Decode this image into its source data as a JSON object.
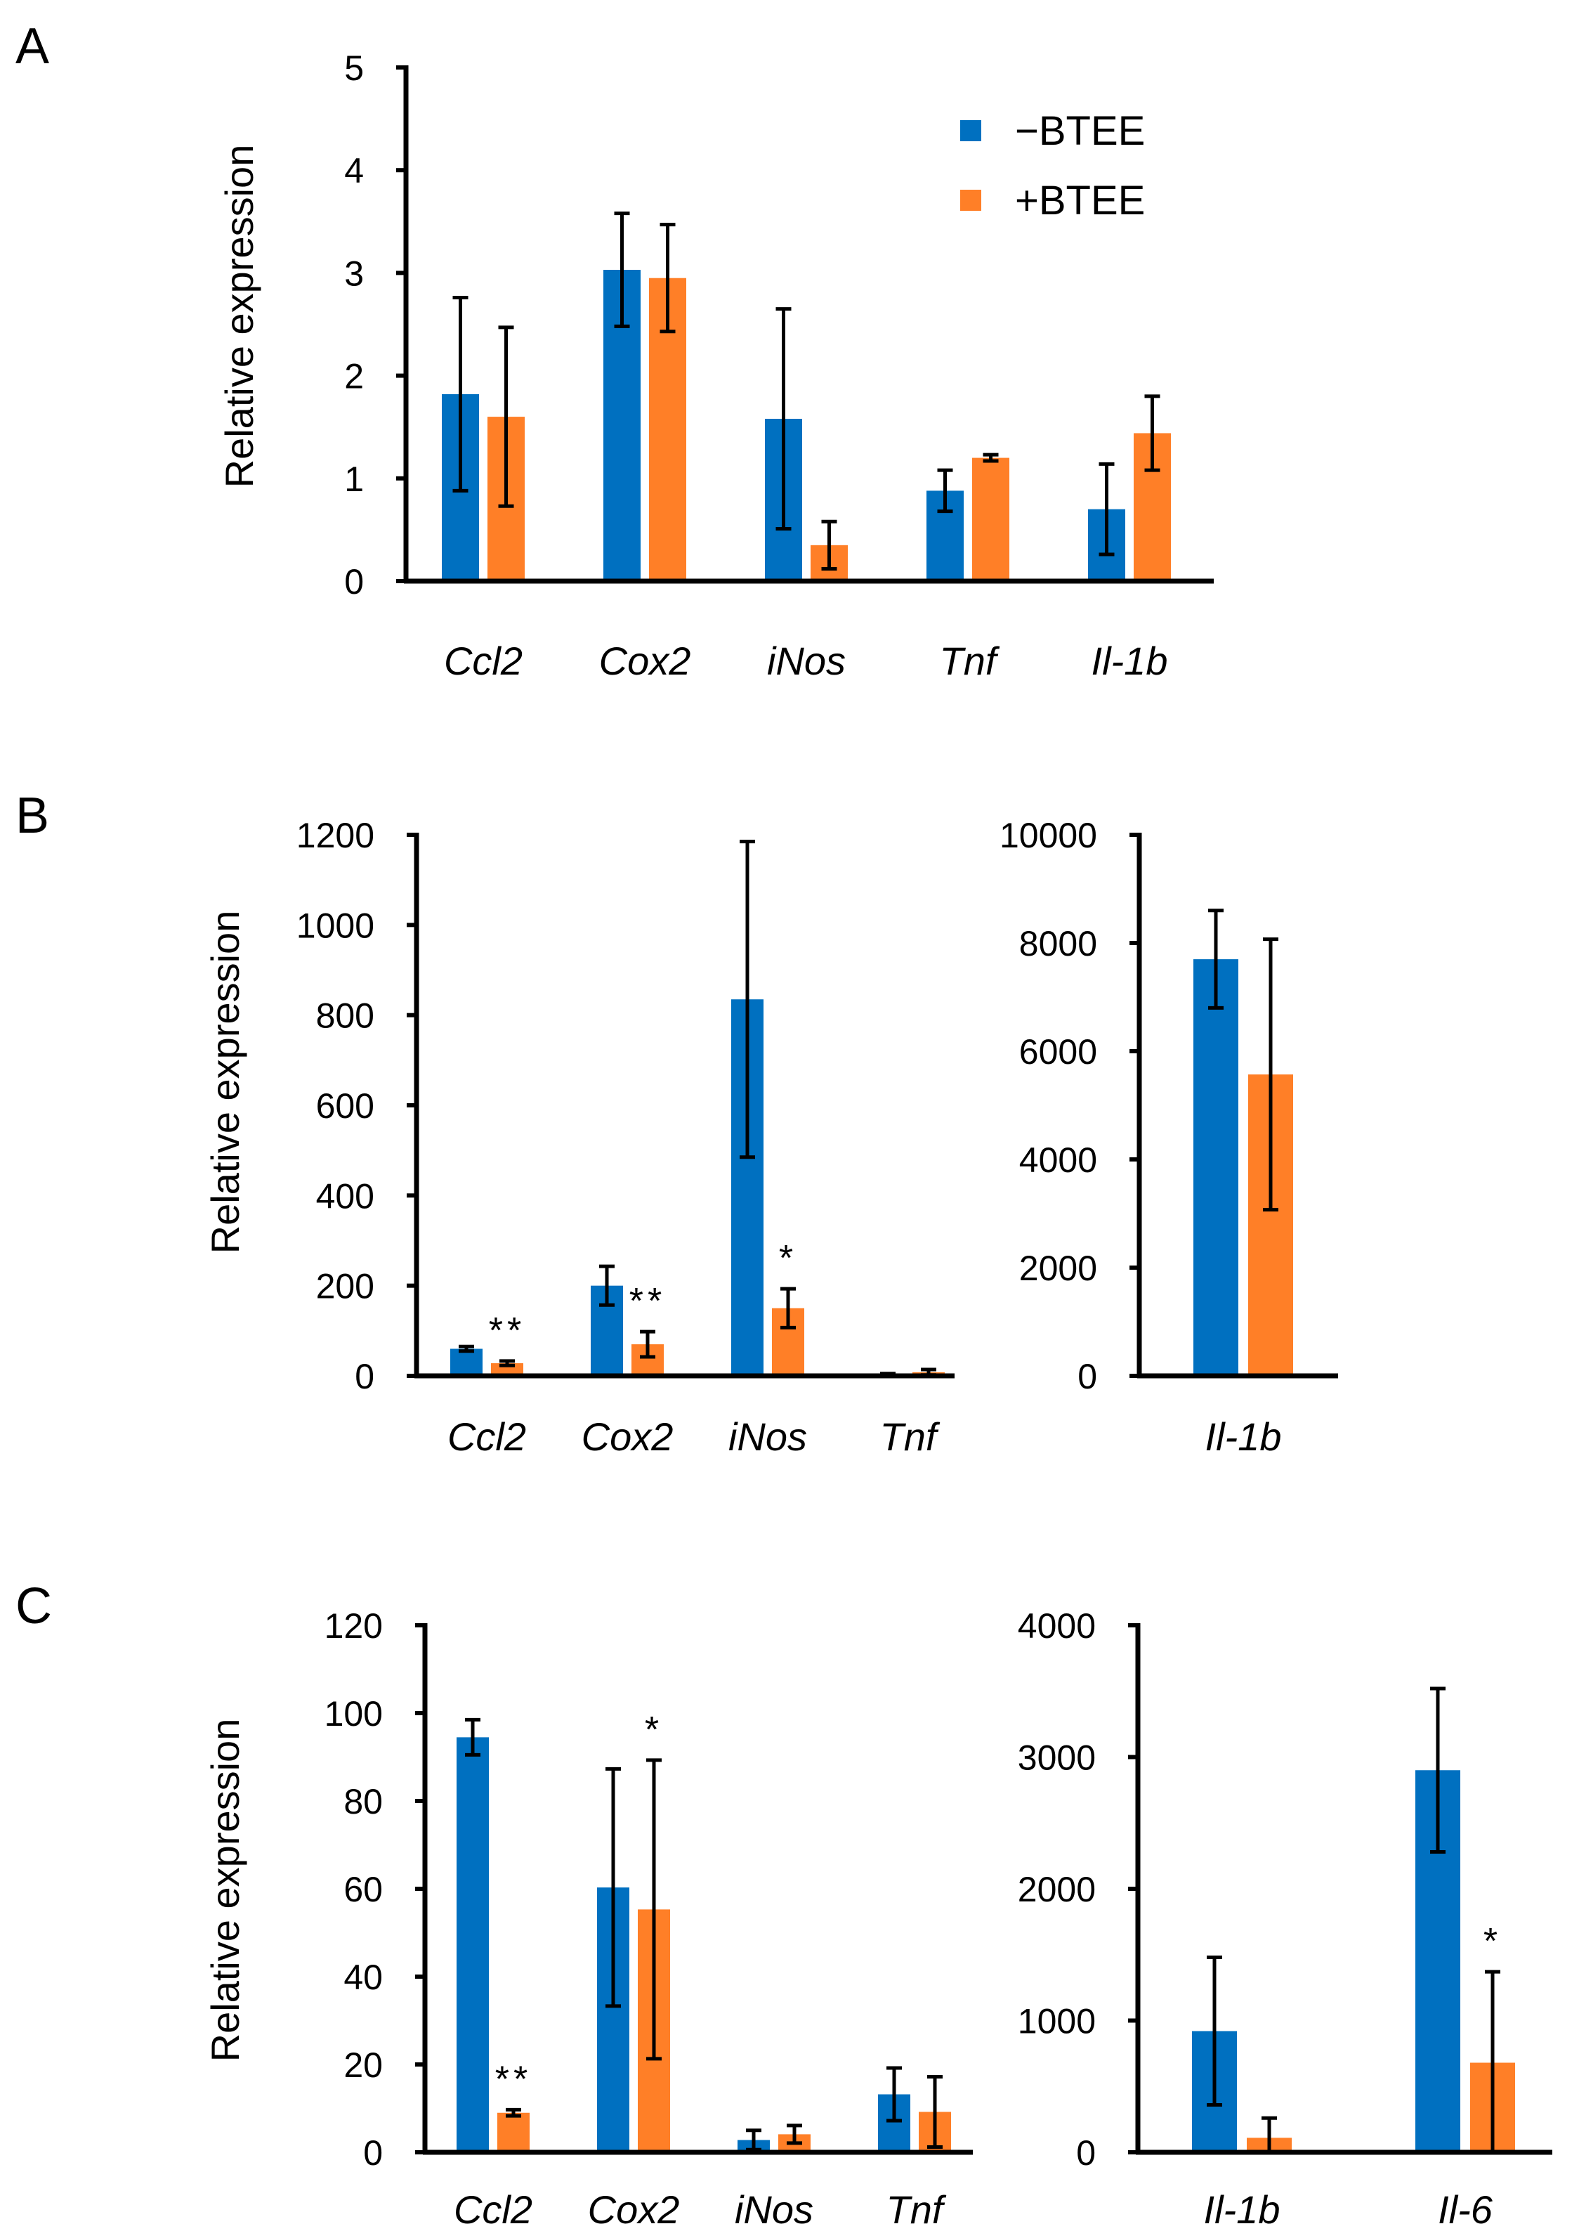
{
  "colors": {
    "minus_btee": "#0070C0",
    "plus_btee": "#FF7F27"
  },
  "legend": [
    {
      "name": "−BTEE",
      "color": "#0070C0"
    },
    {
      "name": "+BTEE",
      "color": "#FF7F27"
    }
  ],
  "chart_data": [
    {
      "panel": "A",
      "type": "bar",
      "ylabel": "Relative expression",
      "ylim": [
        0,
        5
      ],
      "yticks": [
        0,
        1,
        2,
        3,
        4,
        5
      ],
      "categories": [
        "Ccl2",
        "Cox2",
        "iNos",
        "Tnf",
        "Il-1b"
      ],
      "series": [
        {
          "name": "−BTEE",
          "values": [
            1.82,
            3.03,
            1.58,
            0.88,
            0.7
          ],
          "errors": [
            0.94,
            0.55,
            1.07,
            0.2,
            0.44
          ]
        },
        {
          "name": "+BTEE",
          "values": [
            1.6,
            2.95,
            0.35,
            1.2,
            1.44
          ],
          "errors": [
            0.87,
            0.52,
            0.23,
            0.03,
            0.36
          ]
        }
      ],
      "annotations": []
    },
    {
      "panel": "B",
      "type": "bar",
      "ylabel": "Relative expression",
      "ylim": [
        0,
        1200
      ],
      "yticks": [
        0,
        200,
        400,
        600,
        800,
        1000,
        1200
      ],
      "categories": [
        "Ccl2",
        "Cox2",
        "iNos",
        "Tnf"
      ],
      "series": [
        {
          "name": "−BTEE",
          "values": [
            60,
            200,
            835,
            3
          ],
          "errors": [
            5,
            43,
            350,
            2
          ]
        },
        {
          "name": "+BTEE",
          "values": [
            28,
            70,
            150,
            8
          ],
          "errors": [
            5,
            28,
            43,
            6
          ]
        }
      ],
      "annotations": [
        {
          "category": "Ccl2",
          "series": "+BTEE",
          "text": "**"
        },
        {
          "category": "Cox2",
          "series": "+BTEE",
          "text": "**"
        },
        {
          "category": "iNos",
          "series": "+BTEE",
          "text": "*"
        }
      ]
    },
    {
      "panel": "B",
      "type": "bar",
      "ylabel": "",
      "ylim": [
        0,
        10000
      ],
      "yticks": [
        0,
        2000,
        4000,
        6000,
        8000,
        10000
      ],
      "categories": [
        "Il-1b"
      ],
      "series": [
        {
          "name": "−BTEE",
          "values": [
            7700
          ],
          "errors": [
            900
          ]
        },
        {
          "name": "+BTEE",
          "values": [
            5570
          ],
          "errors": [
            2500
          ]
        }
      ],
      "annotations": []
    },
    {
      "panel": "C",
      "type": "bar",
      "ylabel": "Relative expression",
      "ylim": [
        0,
        120
      ],
      "yticks": [
        0,
        20,
        40,
        60,
        80,
        100,
        120
      ],
      "categories": [
        "Ccl2",
        "Cox2",
        "iNos",
        "Tnf"
      ],
      "series": [
        {
          "name": "−BTEE",
          "values": [
            94.5,
            60.3,
            2.8,
            13.2
          ],
          "errors": [
            4,
            27,
            2.2,
            6
          ]
        },
        {
          "name": "+BTEE",
          "values": [
            9,
            55.3,
            4.1,
            9.2
          ],
          "errors": [
            0.7,
            34,
            2,
            8
          ]
        }
      ],
      "annotations": [
        {
          "category": "Ccl2",
          "series": "+BTEE",
          "text": "**"
        },
        {
          "category": "Cox2",
          "series": "+BTEE",
          "text": "*"
        }
      ]
    },
    {
      "panel": "C",
      "type": "bar",
      "ylabel": "",
      "ylim": [
        0,
        4000
      ],
      "yticks": [
        0,
        1000,
        2000,
        3000,
        4000
      ],
      "categories": [
        "Il-1b",
        "Il-6"
      ],
      "series": [
        {
          "name": "−BTEE",
          "values": [
            920,
            2900
          ],
          "errors": [
            560,
            620
          ]
        },
        {
          "name": "+BTEE",
          "values": [
            110,
            680
          ],
          "errors": [
            150,
            690
          ]
        }
      ],
      "annotations": [
        {
          "category": "Il-6",
          "series": "+BTEE",
          "text": "*"
        }
      ]
    }
  ]
}
